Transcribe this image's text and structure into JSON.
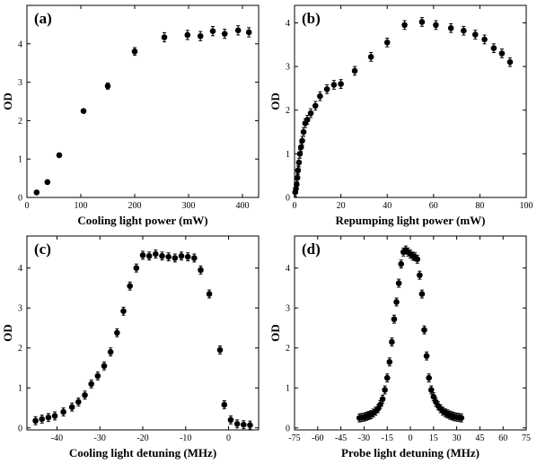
{
  "chart_data": [
    {
      "id": "a",
      "type": "scatter",
      "panel_label": "(a)",
      "xlabel": "Cooling light power (mW)",
      "ylabel": "OD",
      "xlim": [
        0,
        430
      ],
      "ylim": [
        0,
        5
      ],
      "xticks": [
        0,
        100,
        200,
        300,
        400
      ],
      "yticks": [
        0,
        1,
        2,
        3,
        4
      ],
      "error_bars": true,
      "series": [
        {
          "x": [
            18,
            38,
            60,
            105,
            150,
            200,
            255,
            298,
            322,
            345,
            367,
            392,
            412
          ],
          "y": [
            0.13,
            0.4,
            1.1,
            2.25,
            2.9,
            3.8,
            4.17,
            4.23,
            4.2,
            4.33,
            4.26,
            4.35,
            4.3
          ],
          "err": [
            0,
            0,
            0,
            0,
            0.08,
            0.1,
            0.12,
            0.12,
            0.12,
            0.12,
            0.12,
            0.12,
            0.12
          ]
        }
      ]
    },
    {
      "id": "b",
      "type": "scatter",
      "panel_label": "(b)",
      "xlabel": "Repumping light power (mW)",
      "ylabel": "OD",
      "xlim": [
        0,
        100
      ],
      "ylim": [
        0,
        4.4
      ],
      "xticks": [
        0,
        20,
        40,
        60,
        80,
        100
      ],
      "yticks": [
        0,
        1,
        2,
        3,
        4
      ],
      "error_bars": true,
      "series": [
        {
          "x": [
            0.3,
            0.6,
            0.9,
            1.2,
            1.5,
            1.9,
            2.3,
            2.8,
            3.3,
            3.9,
            4.6,
            5.5,
            7.0,
            9.0,
            11.0,
            14.0,
            17.0,
            20.0,
            26.0,
            33.0,
            40.0,
            47.5,
            55.0,
            61.0,
            67.5,
            73.0,
            78.0,
            82.0,
            86.0,
            89.5,
            93.0
          ],
          "y": [
            0.12,
            0.2,
            0.3,
            0.45,
            0.62,
            0.8,
            1.0,
            1.15,
            1.3,
            1.5,
            1.7,
            1.78,
            1.93,
            2.1,
            2.32,
            2.48,
            2.58,
            2.6,
            2.9,
            3.22,
            3.55,
            3.95,
            4.02,
            3.95,
            3.88,
            3.82,
            3.73,
            3.62,
            3.42,
            3.3,
            3.1
          ]
        }
      ]
    },
    {
      "id": "c",
      "type": "scatter",
      "panel_label": "(c)",
      "xlabel": "Cooling light detuning (MHz)",
      "ylabel": "OD",
      "xlim": [
        -47,
        7
      ],
      "ylim": [
        -0.05,
        4.8
      ],
      "xticks": [
        -40,
        -30,
        -20,
        -10,
        0
      ],
      "yticks": [
        0,
        1,
        2,
        3,
        4
      ],
      "error_bars": true,
      "series": [
        {
          "x": [
            -45,
            -43.5,
            -42,
            -40.5,
            -38.5,
            -36.5,
            -35,
            -33.5,
            -32,
            -30.5,
            -29,
            -27.5,
            -26,
            -24.5,
            -23,
            -21.5,
            -20,
            -18.5,
            -17,
            -15.5,
            -14,
            -12.5,
            -11,
            -9.5,
            -8,
            -6.5,
            -4.5,
            -2,
            -1,
            0.5,
            2,
            3.5,
            5
          ],
          "y": [
            0.18,
            0.22,
            0.26,
            0.3,
            0.4,
            0.52,
            0.65,
            0.82,
            1.1,
            1.3,
            1.55,
            1.9,
            2.38,
            2.92,
            3.55,
            4.0,
            4.32,
            4.3,
            4.35,
            4.3,
            4.28,
            4.25,
            4.3,
            4.28,
            4.25,
            3.95,
            3.35,
            1.95,
            0.58,
            0.2,
            0.1,
            0.08,
            0.07
          ]
        }
      ]
    },
    {
      "id": "d",
      "type": "scatter",
      "panel_label": "(d)",
      "xlabel": "Probe light detuning (MHz)",
      "ylabel": "OD",
      "xlim": [
        -75,
        75
      ],
      "ylim": [
        -0.05,
        4.8
      ],
      "xticks": [
        -75,
        -60,
        -45,
        -30,
        -15,
        0,
        15,
        30,
        45,
        60,
        75
      ],
      "yticks": [
        0,
        1,
        2,
        3,
        4
      ],
      "error_bars": true,
      "series": [
        {
          "x": [
            -33,
            -31.5,
            -30,
            -28.5,
            -27,
            -25.5,
            -24,
            -22.5,
            -21,
            -19.5,
            -18,
            -16.5,
            -15,
            -13.5,
            -12,
            -10.5,
            -9,
            -7.5,
            -6,
            -4.5,
            -3,
            -1.5,
            0,
            1.5,
            3,
            4.5,
            6,
            7.5,
            9,
            10.5,
            12,
            13.5,
            15,
            16.5,
            18,
            19.5,
            21,
            22.5,
            24,
            25.5,
            27,
            28.5,
            30,
            31.5,
            33
          ],
          "y": [
            0.25,
            0.26,
            0.27,
            0.29,
            0.31,
            0.33,
            0.37,
            0.42,
            0.48,
            0.58,
            0.72,
            0.95,
            1.25,
            1.65,
            2.15,
            2.72,
            3.15,
            3.62,
            4.1,
            4.4,
            4.45,
            4.4,
            4.35,
            4.3,
            4.28,
            4.22,
            3.82,
            3.35,
            2.45,
            1.8,
            1.25,
            0.95,
            0.78,
            0.65,
            0.55,
            0.48,
            0.42,
            0.38,
            0.35,
            0.32,
            0.3,
            0.28,
            0.27,
            0.26,
            0.25
          ]
        }
      ]
    }
  ]
}
